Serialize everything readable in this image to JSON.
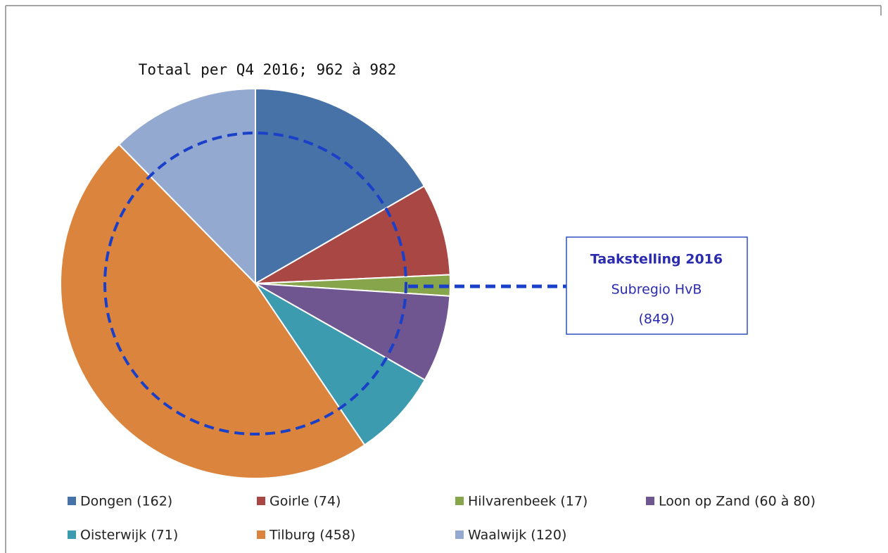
{
  "chart_data": {
    "type": "pie",
    "title": "Totaal per Q4 2016; 962 à 982",
    "categories": [
      "Dongen (162)",
      "Goirle (74)",
      "Hilvarenbeek (17)",
      "Loon op Zand (60 à 80)",
      "Oisterwijk (71)",
      "Tilburg (458)",
      "Waalwijk (120)"
    ],
    "values": [
      162,
      74,
      17,
      70,
      71,
      458,
      120
    ],
    "colors": [
      "#4672a8",
      "#a94744",
      "#87a64b",
      "#6f5690",
      "#3d9bb0",
      "#db843d",
      "#93a9d0"
    ],
    "annotation": {
      "title": "Taakstelling 2016",
      "lines": [
        "Subregio HvB",
        "(849)"
      ]
    }
  }
}
